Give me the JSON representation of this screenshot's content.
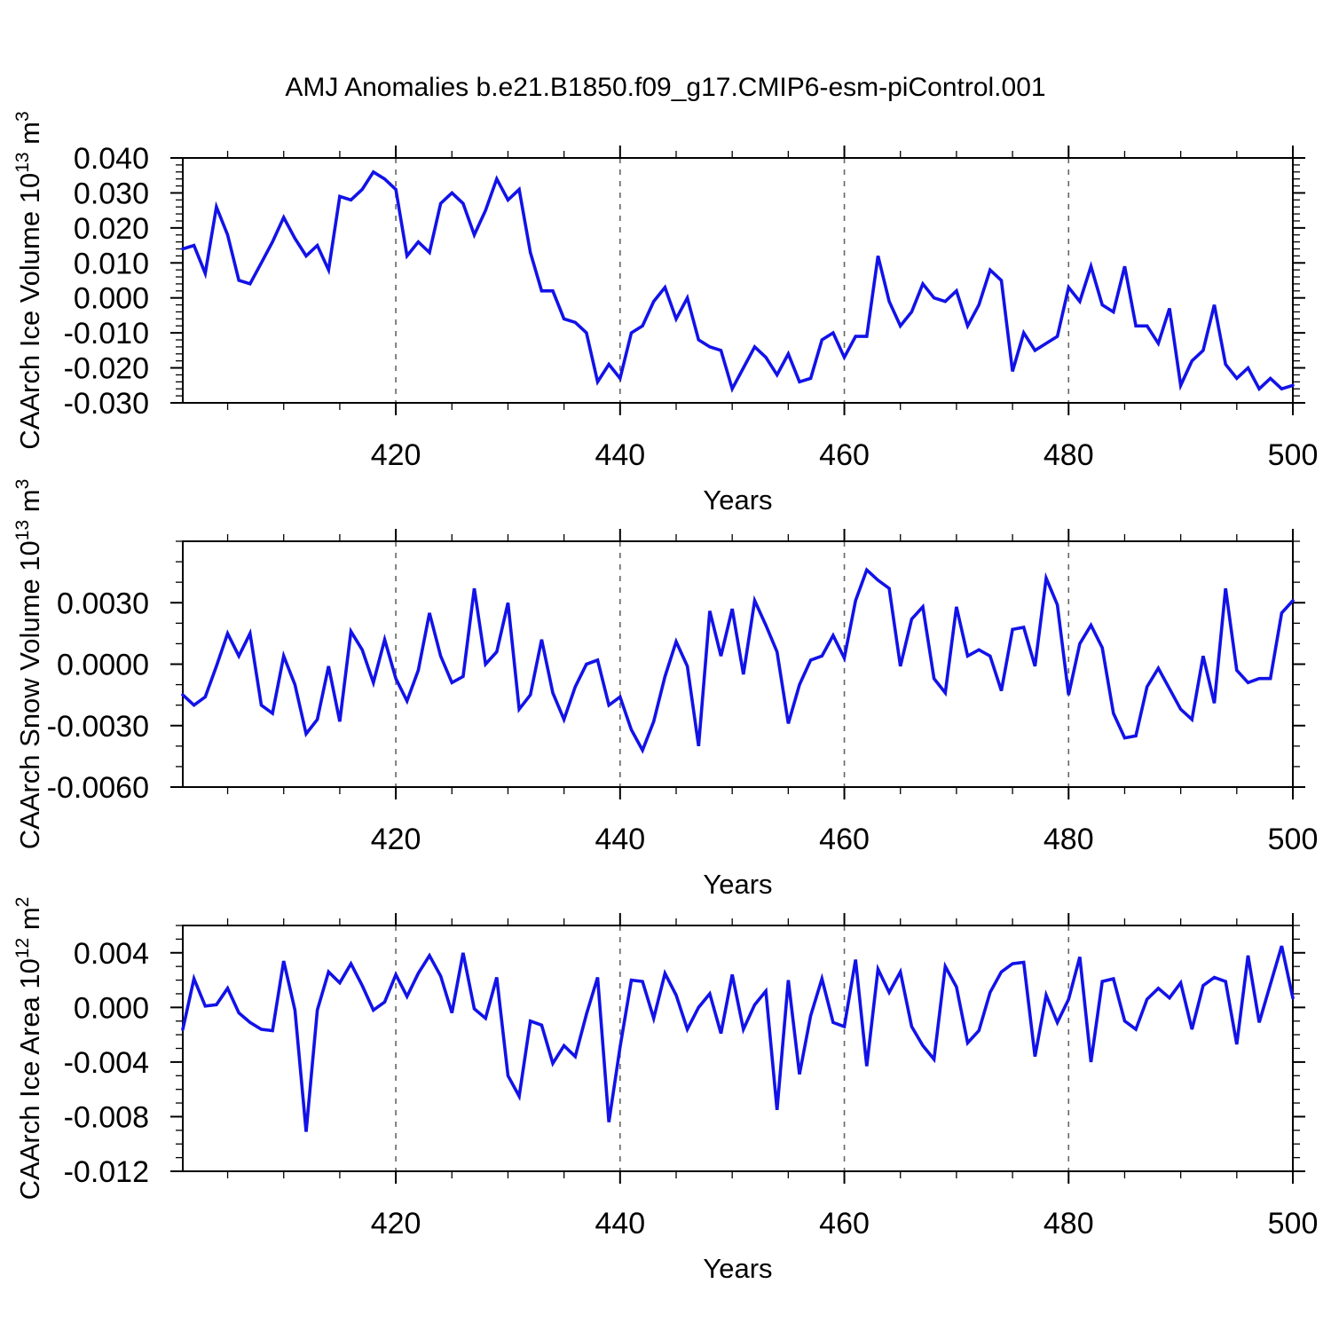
{
  "title": "AMJ Anomalies b.e21.B1850.f09_g17.CMIP6-esm-piControl.001",
  "xlabel": "Years",
  "colors": {
    "line": "#1212e8",
    "grid": "#666666",
    "axis": "#000000"
  },
  "x_axis": {
    "range": [
      401,
      500
    ],
    "major_ticks": [
      420,
      440,
      460,
      480,
      500
    ],
    "major_tick_labels": [
      "420",
      "440",
      "460",
      "480",
      "500"
    ],
    "minor_tick_step": 5,
    "gridlines_at": [
      420,
      440,
      460,
      480
    ]
  },
  "panels": [
    {
      "id": "ice-volume",
      "ylabel_parts": [
        {
          "t": "CAArch Ice Volume 10"
        },
        {
          "t": "13",
          "sup": true
        },
        {
          "t": " m"
        },
        {
          "t": "3",
          "sup": true
        }
      ],
      "y_range": [
        -0.03,
        0.04
      ],
      "y_major_ticks": [
        0.04,
        0.03,
        0.02,
        0.01,
        0.0,
        -0.01,
        -0.02,
        -0.03
      ],
      "y_tick_labels": [
        "0.040",
        "0.030",
        "0.020",
        "0.010",
        "0.000",
        "-0.010",
        "-0.020",
        "-0.030"
      ],
      "y_minor_step": 0.002
    },
    {
      "id": "snow-volume",
      "ylabel_parts": [
        {
          "t": "CAArch Snow Volume 10"
        },
        {
          "t": "13",
          "sup": true
        },
        {
          "t": " m"
        },
        {
          "t": "3",
          "sup": true
        }
      ],
      "y_range": [
        -0.006,
        0.006
      ],
      "y_major_ticks": [
        0.003,
        0.0,
        -0.003,
        -0.006
      ],
      "y_tick_labels": [
        "0.0030",
        "0.0000",
        "-0.0030",
        "-0.0060"
      ],
      "y_minor_step": 0.001
    },
    {
      "id": "ice-area",
      "ylabel_parts": [
        {
          "t": "CAArch Ice Area 10"
        },
        {
          "t": "12",
          "sup": true
        },
        {
          "t": " m"
        },
        {
          "t": "2",
          "sup": true
        }
      ],
      "y_range": [
        -0.012,
        0.006
      ],
      "y_major_ticks": [
        0.004,
        0.0,
        -0.004,
        -0.008,
        -0.012
      ],
      "y_tick_labels": [
        "0.004",
        "0.000",
        "-0.004",
        "-0.008",
        "-0.012"
      ],
      "y_minor_step": 0.001
    }
  ],
  "chart_data": {
    "type": "line",
    "title": "AMJ Anomalies b.e21.B1850.f09_g17.CMIP6-esm-piControl.001",
    "xlabel": "Years",
    "xlim": [
      401,
      500
    ],
    "grid": "vertical dashed gridlines at x = 420,440,460,480",
    "legend_position": "none",
    "x": [
      401,
      402,
      403,
      404,
      405,
      406,
      407,
      408,
      409,
      410,
      411,
      412,
      413,
      414,
      415,
      416,
      417,
      418,
      419,
      420,
      421,
      422,
      423,
      424,
      425,
      426,
      427,
      428,
      429,
      430,
      431,
      432,
      433,
      434,
      435,
      436,
      437,
      438,
      439,
      440,
      441,
      442,
      443,
      444,
      445,
      446,
      447,
      448,
      449,
      450,
      451,
      452,
      453,
      454,
      455,
      456,
      457,
      458,
      459,
      460,
      461,
      462,
      463,
      464,
      465,
      466,
      467,
      468,
      469,
      470,
      471,
      472,
      473,
      474,
      475,
      476,
      477,
      478,
      479,
      480,
      481,
      482,
      483,
      484,
      485,
      486,
      487,
      488,
      489,
      490,
      491,
      492,
      493,
      494,
      495,
      496,
      497,
      498,
      499,
      500
    ],
    "series": [
      {
        "name": "CAArch Ice Volume 10^13 m^3",
        "ylim": [
          -0.03,
          0.04
        ],
        "values": [
          0.014,
          0.015,
          0.007,
          0.026,
          0.018,
          0.005,
          0.004,
          0.01,
          0.016,
          0.023,
          0.017,
          0.012,
          0.015,
          0.008,
          0.029,
          0.028,
          0.031,
          0.036,
          0.034,
          0.031,
          0.012,
          0.016,
          0.013,
          0.027,
          0.03,
          0.027,
          0.018,
          0.025,
          0.034,
          0.028,
          0.031,
          0.013,
          0.002,
          0.002,
          -0.006,
          -0.007,
          -0.01,
          -0.024,
          -0.019,
          -0.023,
          -0.01,
          -0.008,
          -0.001,
          0.003,
          -0.006,
          0.0,
          -0.012,
          -0.014,
          -0.015,
          -0.026,
          -0.02,
          -0.014,
          -0.017,
          -0.022,
          -0.016,
          -0.024,
          -0.023,
          -0.012,
          -0.01,
          -0.017,
          -0.011,
          -0.011,
          0.012,
          -0.001,
          -0.008,
          -0.004,
          0.004,
          0.0,
          -0.001,
          0.002,
          -0.008,
          -0.002,
          0.008,
          0.005,
          -0.021,
          -0.01,
          -0.015,
          -0.013,
          -0.011,
          0.003,
          -0.001,
          0.009,
          -0.002,
          -0.004,
          0.009,
          -0.008,
          -0.008,
          -0.013,
          -0.003,
          -0.025,
          -0.018,
          -0.015,
          -0.002,
          -0.019,
          -0.023,
          -0.02,
          -0.026,
          -0.023,
          -0.026,
          -0.025
        ]
      },
      {
        "name": "CAArch Snow Volume 10^13 m^3",
        "ylim": [
          -0.006,
          0.006
        ],
        "values": [
          -0.0015,
          -0.002,
          -0.0016,
          -0.0001,
          0.0015,
          0.0004,
          0.0015,
          -0.002,
          -0.0024,
          0.0004,
          -0.001,
          -0.0034,
          -0.0027,
          -0.0001,
          -0.0028,
          0.0016,
          0.0007,
          -0.0009,
          0.0012,
          -0.0007,
          -0.0018,
          -0.0003,
          0.0025,
          0.0004,
          -0.0009,
          -0.0006,
          0.0037,
          0.0,
          0.0006,
          0.003,
          -0.0022,
          -0.0015,
          0.0012,
          -0.0014,
          -0.0027,
          -0.0011,
          0.0,
          0.0002,
          -0.002,
          -0.0016,
          -0.0032,
          -0.0042,
          -0.0028,
          -0.0006,
          0.0011,
          -0.0001,
          -0.004,
          0.0026,
          0.0004,
          0.0027,
          -0.0005,
          0.0031,
          0.0019,
          0.0006,
          -0.0029,
          -0.001,
          0.0002,
          0.0004,
          0.0014,
          0.0003,
          0.0031,
          0.0046,
          0.0041,
          0.0037,
          -0.0001,
          0.0022,
          0.0028,
          -0.0007,
          -0.0014,
          0.0028,
          0.0004,
          0.0007,
          0.0004,
          -0.0013,
          0.0017,
          0.0018,
          -0.0001,
          0.0042,
          0.0029,
          -0.0015,
          0.001,
          0.0019,
          0.0008,
          -0.0024,
          -0.0036,
          -0.0035,
          -0.0011,
          -0.0002,
          -0.0012,
          -0.0022,
          -0.0027,
          0.0004,
          -0.0019,
          0.0037,
          -0.0003,
          -0.0009,
          -0.0007,
          -0.0007,
          0.0025,
          0.0031
        ]
      },
      {
        "name": "CAArch Ice Area 10^12 m^2",
        "ylim": [
          -0.012,
          0.006
        ],
        "values": [
          -0.0016,
          0.0021,
          0.0001,
          0.0002,
          0.0014,
          -0.0004,
          -0.0011,
          -0.0016,
          -0.0017,
          0.0034,
          -0.0002,
          -0.0091,
          -0.0002,
          0.0026,
          0.0018,
          0.0032,
          0.0016,
          -0.0002,
          0.0004,
          0.0024,
          0.0008,
          0.0025,
          0.0038,
          0.0023,
          -0.0004,
          0.004,
          -0.0001,
          -0.0008,
          0.0022,
          -0.005,
          -0.0065,
          -0.001,
          -0.0013,
          -0.0041,
          -0.0028,
          -0.0036,
          -0.0005,
          0.0022,
          -0.0084,
          -0.0029,
          0.002,
          0.0019,
          -0.0008,
          0.0025,
          0.0009,
          -0.0016,
          0.0,
          0.001,
          -0.0019,
          0.0024,
          -0.0016,
          0.0002,
          0.0012,
          -0.0075,
          0.002,
          -0.0049,
          -0.0006,
          0.0021,
          -0.0011,
          -0.0014,
          0.0035,
          -0.0043,
          0.0028,
          0.0011,
          0.0026,
          -0.0014,
          -0.0028,
          -0.0038,
          0.003,
          0.0015,
          -0.0026,
          -0.0017,
          0.0011,
          0.0026,
          0.0032,
          0.0033,
          -0.0036,
          0.0009,
          -0.0011,
          0.0006,
          0.0037,
          -0.004,
          0.0019,
          0.0021,
          -0.001,
          -0.0016,
          0.0006,
          0.0014,
          0.0007,
          0.0018,
          -0.0016,
          0.0016,
          0.0022,
          0.0019,
          -0.0027,
          0.0038,
          -0.0011,
          0.0017,
          0.0045,
          0.0007
        ]
      }
    ]
  }
}
